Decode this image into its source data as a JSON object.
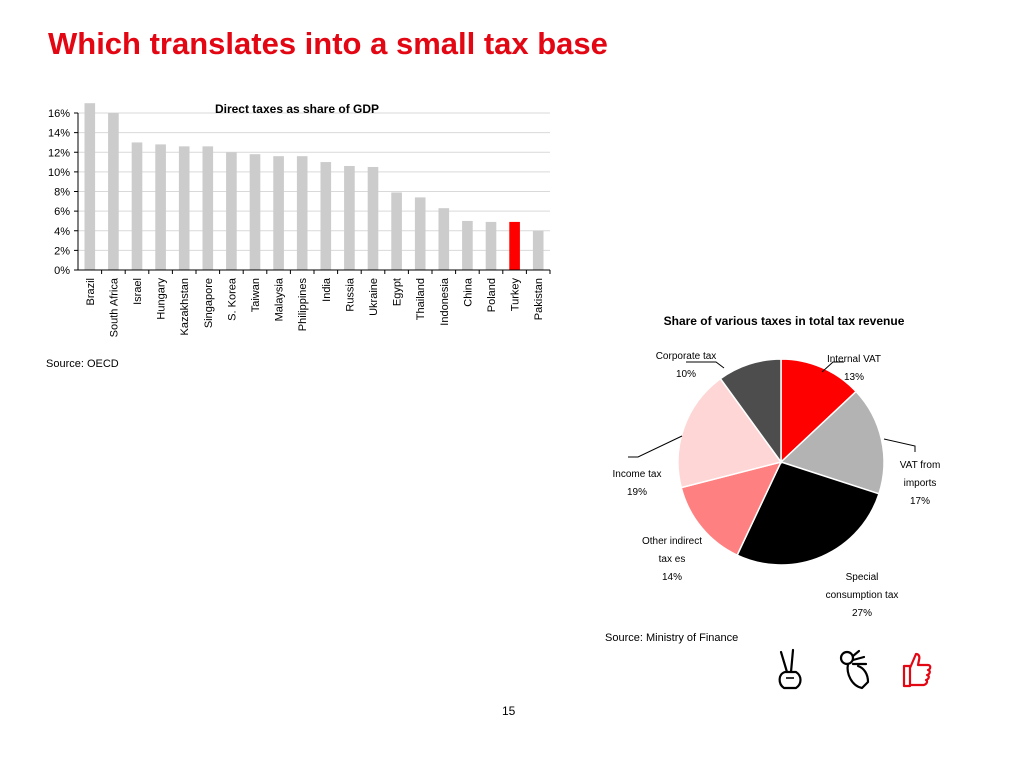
{
  "slide": {
    "title": "Which translates into a small tax base",
    "page_number": "15"
  },
  "bar_source": "Source: OECD",
  "pie_source": "Source: Ministry of Finance",
  "icons": [
    {
      "name": "victory-hand-icon",
      "color": "#000000"
    },
    {
      "name": "ok-hand-icon",
      "color": "#000000"
    },
    {
      "name": "thumbs-up-icon",
      "color": "#e30613"
    }
  ],
  "colors": {
    "title": "#e30613",
    "bar_default": "#cccccc",
    "bar_highlight": "#ff0000",
    "gridline": "#d9d9d9"
  },
  "chart_data": [
    {
      "type": "bar",
      "title": "Direct taxes as share of GDP",
      "xlabel": "",
      "ylabel": "",
      "categories": [
        "Brazil",
        "South Africa",
        "Israel",
        "Hungary",
        "Kazakhstan",
        "Singapore",
        "S. Korea",
        "Taiwan",
        "Malaysia",
        "Philippines",
        "India",
        "Russia",
        "Ukraine",
        "Egypt",
        "Thailand",
        "Indonesia",
        "China",
        "Poland",
        "Turkey",
        "Pakistan"
      ],
      "values": [
        17.0,
        16.0,
        13.0,
        12.8,
        12.6,
        12.6,
        12.0,
        11.8,
        11.6,
        11.6,
        11.0,
        10.6,
        10.5,
        7.9,
        7.4,
        6.3,
        5.0,
        4.9,
        4.9,
        4.0
      ],
      "highlight": "Turkey",
      "ylim": [
        0,
        16
      ],
      "yticks": [
        0,
        2,
        4,
        6,
        8,
        10,
        12,
        14,
        16
      ],
      "ytick_suffix": "%",
      "grid": true,
      "legend": "none"
    },
    {
      "type": "pie",
      "title": "Share of various taxes in total tax revenue",
      "slices": [
        {
          "label": "Internal VAT",
          "value": 13,
          "color": "#ff0000"
        },
        {
          "label": "VAT from imports",
          "value": 17,
          "color": "#b3b3b3"
        },
        {
          "label": "Special consumption tax",
          "value": 27,
          "color": "#000000"
        },
        {
          "label": "Other indirect taxes",
          "value": 14,
          "color": "#ff8080"
        },
        {
          "label": "Income tax",
          "value": 19,
          "color": "#ffd6d6"
        },
        {
          "label": "Corporate tax",
          "value": 10,
          "color": "#4d4d4d"
        }
      ],
      "value_suffix": "%",
      "legend": "none"
    }
  ]
}
